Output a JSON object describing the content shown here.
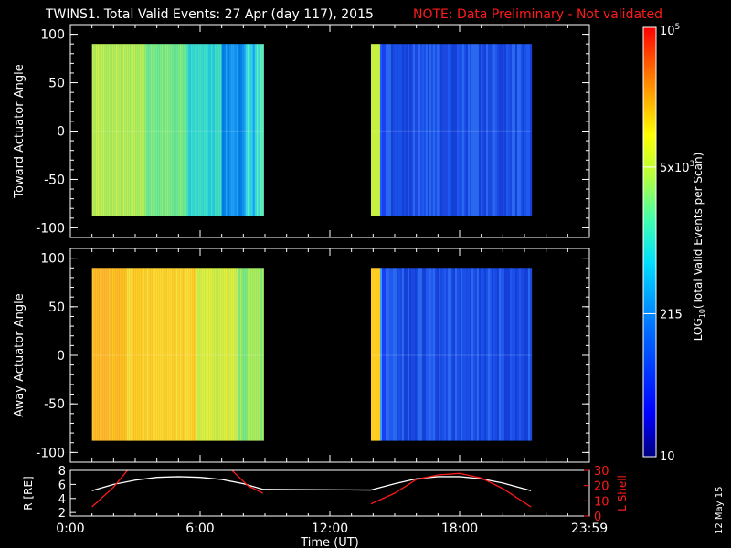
{
  "header": {
    "title": "TWINS1. Total Valid Events: 27 Apr (day 117), 2015",
    "note": "NOTE: Data Preliminary - Not validated",
    "note_color": "#ff1a1a"
  },
  "colors": {
    "background": "#000000",
    "axes": "#ffffff",
    "lshell": "#ff1a1a",
    "radius": "#ffffff"
  },
  "colorbar": {
    "label": "LOG10(Total Valid Events per Scan)",
    "tick_labels": [
      "10",
      "215",
      "5x10^3",
      "10^5"
    ],
    "tick_values": [
      10,
      215,
      5000,
      100000
    ],
    "range": [
      10,
      100000
    ],
    "scale": "log"
  },
  "stamp": "12 May 15",
  "chart_data": [
    {
      "type": "heatmap",
      "ylabel": "Toward Actuator Angle",
      "xlim": [
        0,
        24
      ],
      "ylim": [
        -110,
        110
      ],
      "yticks": [
        -100,
        -50,
        0,
        50,
        100
      ],
      "data_y_range": [
        -88,
        90
      ],
      "blocks": [
        {
          "x_start": 1.0,
          "x_end": 8.9,
          "profile": "toward_morning"
        },
        {
          "x_start": 13.9,
          "x_end": 21.3,
          "profile": "toward_evening"
        }
      ]
    },
    {
      "type": "heatmap",
      "ylabel": "Away Actuator Angle",
      "xlim": [
        0,
        24
      ],
      "ylim": [
        -110,
        110
      ],
      "yticks": [
        -100,
        -50,
        0,
        50,
        100
      ],
      "data_y_range": [
        -88,
        90
      ],
      "blocks": [
        {
          "x_start": 1.0,
          "x_end": 8.9,
          "profile": "away_morning"
        },
        {
          "x_start": 13.9,
          "x_end": 21.3,
          "profile": "away_evening"
        }
      ]
    },
    {
      "type": "line",
      "xlabel": "Time (UT)",
      "xlim": [
        0,
        24
      ],
      "xtick_values": [
        0,
        6,
        12,
        18,
        24
      ],
      "xtick_labels": [
        "0:00",
        "6:00",
        "12:00",
        "18:00",
        "23:59"
      ],
      "ylabel_left": "R [RE]",
      "ylim_left": [
        1.5,
        8
      ],
      "yticks_left": [
        2,
        4,
        6,
        8
      ],
      "ylabel_right": "L Shell",
      "ylim_right": [
        0,
        30
      ],
      "yticks_right": [
        0,
        10,
        20,
        30
      ],
      "series": [
        {
          "axis": "left",
          "x": [
            1.0,
            2.0,
            3.0,
            4.0,
            5.0,
            6.0,
            7.0,
            8.0,
            8.9,
            13.9,
            15.0,
            16.0,
            17.0,
            18.0,
            19.0,
            20.0,
            21.3
          ],
          "y": [
            5.1,
            6.0,
            6.6,
            7.0,
            7.1,
            7.0,
            6.7,
            6.1,
            5.3,
            5.2,
            6.1,
            6.8,
            7.1,
            7.1,
            6.8,
            6.2,
            5.1
          ]
        },
        {
          "axis": "right",
          "x": [
            1.0,
            2.0,
            2.7,
            7.4,
            8.2,
            8.9,
            13.9,
            15.0,
            16.0,
            17.0,
            18.0,
            19.0,
            20.0,
            21.3
          ],
          "y": [
            6,
            19,
            31,
            31,
            20,
            15,
            8,
            15,
            24,
            27,
            28,
            25,
            18,
            6
          ]
        }
      ]
    }
  ]
}
